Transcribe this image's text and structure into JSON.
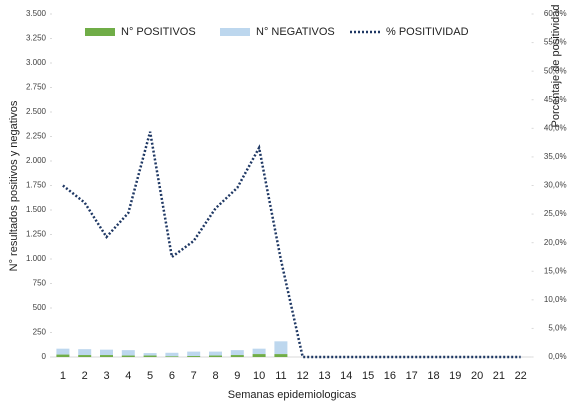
{
  "chart_data": {
    "type": "bar",
    "x_label": "Semanas epidemiologicas",
    "y_label": "N° resultados positivos y negativos",
    "y2_label": "Porcentaje de positividad",
    "categories": [
      1,
      2,
      3,
      4,
      5,
      6,
      7,
      8,
      9,
      10,
      11,
      12,
      13,
      14,
      15,
      16,
      17,
      18,
      19,
      20,
      21,
      22
    ],
    "series": [
      {
        "name": "N°  POSITIVOS",
        "type": "bar",
        "color": "#70ad47",
        "values": [
          25,
          20,
          20,
          15,
          15,
          8,
          10,
          15,
          20,
          30,
          30,
          0,
          0,
          0,
          0,
          0,
          0,
          0,
          0,
          0,
          0,
          0
        ]
      },
      {
        "name": "N° NEGATIVOS",
        "type": "bar",
        "color": "#bdd7ee",
        "values": [
          60,
          60,
          55,
          55,
          25,
          35,
          45,
          40,
          50,
          55,
          130,
          0,
          0,
          0,
          0,
          0,
          0,
          0,
          0,
          0,
          0,
          0
        ]
      },
      {
        "name": "% POSITIVIDAD",
        "type": "line",
        "axis": "y2",
        "color": "#1f3864",
        "line_style": "dotted",
        "values": [
          30,
          27,
          21,
          25.2,
          39.4,
          17.5,
          20.3,
          26,
          29.6,
          36.6,
          17,
          0,
          0,
          0,
          0,
          0,
          0,
          0,
          0,
          0,
          0,
          0
        ]
      }
    ],
    "stacked": true,
    "legend": "top",
    "ylim": [
      0,
      3500
    ],
    "yticks": [
      0,
      250,
      500,
      750,
      {
        "value": 1000,
        "label": "1.000"
      },
      {
        "value": 1250,
        "label": "1.250"
      },
      {
        "value": 1500,
        "label": "1.500"
      },
      {
        "value": 1750,
        "label": "1.750"
      },
      {
        "value": 2000,
        "label": "2.000"
      },
      {
        "value": 2250,
        "label": "2.250"
      },
      {
        "value": 2500,
        "label": "2.500"
      },
      {
        "value": 2750,
        "label": "2.750"
      },
      {
        "value": 3000,
        "label": "3.000"
      },
      {
        "value": 3250,
        "label": "3.250"
      },
      {
        "value": 3500,
        "label": "3.500"
      }
    ],
    "y2lim": [
      0,
      60
    ],
    "y2ticks": [
      {
        "value": 0,
        "label": "0,0%"
      },
      {
        "value": 5,
        "label": "5,0%"
      },
      {
        "value": 10,
        "label": "10,0%"
      },
      {
        "value": 15,
        "label": "15,0%"
      },
      {
        "value": 20,
        "label": "20,0%"
      },
      {
        "value": 25,
        "label": "25,0%"
      },
      {
        "value": 30,
        "label": "30,0%"
      },
      {
        "value": 35,
        "label": "35,0%"
      },
      {
        "value": 40,
        "label": "40,0%"
      },
      {
        "value": 45,
        "label": "45,0%"
      },
      {
        "value": 50,
        "label": "50,0%"
      },
      {
        "value": 55,
        "label": "55,0%"
      },
      {
        "value": 60,
        "label": "60,0%"
      }
    ]
  }
}
